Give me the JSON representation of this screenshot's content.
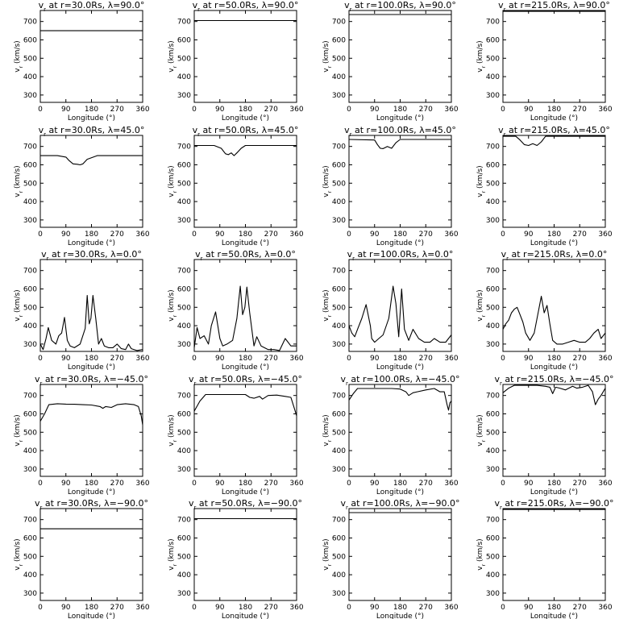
{
  "chart_data": [
    {
      "type": "line",
      "title": "v_r at r=30.0Rs, λ=90.0°",
      "title_r": "30.0",
      "title_lat": "90.0",
      "xlabel": "Longitude (°)",
      "ylabel": "v_r (km/s)",
      "xlim": [
        0,
        360
      ],
      "ylim": [
        260,
        760
      ],
      "xticks": [
        0,
        90,
        180,
        270,
        360
      ],
      "yticks": [
        300,
        400,
        500,
        600,
        700
      ],
      "series": [
        {
          "x": [
            0,
            360
          ],
          "values": [
            650,
            650
          ]
        }
      ]
    },
    {
      "type": "line",
      "title": "v_r at r=50.0Rs, λ=90.0°",
      "title_r": "50.0",
      "title_lat": "90.0",
      "xlabel": "Longitude (°)",
      "ylabel": "v_r (km/s)",
      "xlim": [
        0,
        360
      ],
      "ylim": [
        260,
        760
      ],
      "xticks": [
        0,
        90,
        180,
        270,
        360
      ],
      "yticks": [
        300,
        400,
        500,
        600,
        700
      ],
      "series": [
        {
          "x": [
            0,
            360
          ],
          "values": [
            705,
            705
          ]
        }
      ]
    },
    {
      "type": "line",
      "title": "v_r at r=100.0Rs, λ=90.0°",
      "title_r": "100.0",
      "title_lat": "90.0",
      "xlabel": "Longitude (°)",
      "ylabel": "v_r (km/s)",
      "xlim": [
        0,
        360
      ],
      "ylim": [
        260,
        760
      ],
      "xticks": [
        0,
        90,
        180,
        270,
        360
      ],
      "yticks": [
        300,
        400,
        500,
        600,
        700
      ],
      "series": [
        {
          "x": [
            0,
            360
          ],
          "values": [
            738,
            738
          ]
        }
      ]
    },
    {
      "type": "line",
      "title": "v_r at r=215.0Rs, λ=90.0°",
      "title_r": "215.0",
      "title_lat": "90.0",
      "xlabel": "Longitude (°)",
      "ylabel": "v_r (km/s)",
      "xlim": [
        0,
        360
      ],
      "ylim": [
        260,
        760
      ],
      "xticks": [
        0,
        90,
        180,
        270,
        360
      ],
      "yticks": [
        300,
        400,
        500,
        600,
        700
      ],
      "series": [
        {
          "x": [
            0,
            360
          ],
          "values": [
            755,
            755
          ]
        }
      ]
    },
    {
      "type": "line",
      "title": "v_r at r=30.0Rs, λ=45.0°",
      "title_r": "30.0",
      "title_lat": "45.0",
      "xlabel": "Longitude (°)",
      "ylabel": "v_r (km/s)",
      "xlim": [
        0,
        360
      ],
      "ylim": [
        260,
        760
      ],
      "xticks": [
        0,
        90,
        180,
        270,
        360
      ],
      "yticks": [
        300,
        400,
        500,
        600,
        700
      ],
      "series": [
        {
          "x": [
            0,
            60,
            90,
            100,
            115,
            130,
            140,
            150,
            165,
            200,
            360
          ],
          "values": [
            650,
            650,
            642,
            625,
            605,
            603,
            600,
            605,
            630,
            650,
            650
          ]
        }
      ]
    },
    {
      "type": "line",
      "title": "v_r at r=50.0Rs, λ=45.0°",
      "title_r": "50.0",
      "title_lat": "45.0",
      "xlabel": "Longitude (°)",
      "ylabel": "v_r (km/s)",
      "xlim": [
        0,
        360
      ],
      "ylim": [
        260,
        760
      ],
      "xticks": [
        0,
        90,
        180,
        270,
        360
      ],
      "yticks": [
        300,
        400,
        500,
        600,
        700
      ],
      "series": [
        {
          "x": [
            0,
            70,
            95,
            110,
            120,
            130,
            140,
            150,
            165,
            180,
            360
          ],
          "values": [
            705,
            705,
            690,
            660,
            655,
            665,
            650,
            665,
            690,
            705,
            705
          ]
        }
      ]
    },
    {
      "type": "line",
      "title": "v_r at r=100.0Rs, λ=45.0°",
      "title_r": "100.0",
      "title_lat": "45.0",
      "xlabel": "Longitude (°)",
      "ylabel": "v_r (km/s)",
      "xlim": [
        0,
        360
      ],
      "ylim": [
        260,
        760
      ],
      "xticks": [
        0,
        90,
        180,
        270,
        360
      ],
      "yticks": [
        300,
        400,
        500,
        600,
        700
      ],
      "series": [
        {
          "x": [
            0,
            90,
            100,
            110,
            120,
            135,
            150,
            165,
            180,
            360
          ],
          "values": [
            738,
            735,
            710,
            690,
            688,
            700,
            690,
            720,
            738,
            738
          ]
        }
      ]
    },
    {
      "type": "line",
      "title": "v_r at r=215.0Rs, λ=45.0°",
      "title_r": "215.0",
      "title_lat": "45.0",
      "xlabel": "Longitude (°)",
      "ylabel": "v_r (km/s)",
      "xlim": [
        0,
        360
      ],
      "ylim": [
        260,
        760
      ],
      "xticks": [
        0,
        90,
        180,
        270,
        360
      ],
      "yticks": [
        300,
        400,
        500,
        600,
        700
      ],
      "series": [
        {
          "x": [
            0,
            45,
            60,
            75,
            90,
            105,
            120,
            135,
            150,
            360
          ],
          "values": [
            755,
            755,
            735,
            710,
            705,
            715,
            705,
            725,
            755,
            755
          ]
        }
      ]
    },
    {
      "type": "line",
      "title": "v_r at r=30.0Rs, λ=0.0°",
      "title_r": "30.0",
      "title_lat": "0.0",
      "xlabel": "Longitude (°)",
      "ylabel": "v_r (km/s)",
      "xlim": [
        0,
        360
      ],
      "ylim": [
        260,
        760
      ],
      "xticks": [
        0,
        90,
        180,
        270,
        360
      ],
      "yticks": [
        300,
        400,
        500,
        600,
        700
      ],
      "series": [
        {
          "x": [
            0,
            10,
            20,
            28,
            40,
            55,
            65,
            75,
            85,
            95,
            105,
            120,
            140,
            158,
            165,
            172,
            178,
            185,
            195,
            205,
            215,
            225,
            240,
            255,
            270,
            285,
            300,
            310,
            320,
            340,
            360
          ],
          "values": [
            300,
            270,
            330,
            390,
            320,
            300,
            345,
            360,
            445,
            320,
            290,
            280,
            300,
            385,
            565,
            410,
            440,
            565,
            440,
            300,
            330,
            290,
            280,
            280,
            300,
            275,
            270,
            300,
            275,
            265,
            270
          ]
        }
      ]
    },
    {
      "type": "line",
      "title": "v_r at r=50.0Rs, λ=0.0°",
      "title_r": "50.0",
      "title_lat": "0.0",
      "xlabel": "Longitude (°)",
      "ylabel": "v_r (km/s)",
      "xlim": [
        0,
        360
      ],
      "ylim": [
        260,
        760
      ],
      "xticks": [
        0,
        90,
        180,
        270,
        360
      ],
      "yticks": [
        300,
        400,
        500,
        600,
        700
      ],
      "series": [
        {
          "x": [
            0,
            10,
            20,
            35,
            50,
            60,
            75,
            90,
            100,
            115,
            135,
            150,
            162,
            170,
            178,
            185,
            195,
            210,
            220,
            235,
            260,
            280,
            300,
            320,
            340,
            360
          ],
          "values": [
            280,
            390,
            330,
            345,
            300,
            400,
            475,
            330,
            290,
            300,
            320,
            440,
            615,
            460,
            500,
            610,
            470,
            290,
            340,
            290,
            270,
            270,
            265,
            330,
            290,
            290
          ]
        }
      ]
    },
    {
      "type": "line",
      "title": "v_r at r=100.0Rs, λ=0.0°",
      "title_r": "100.0",
      "title_lat": "0.0",
      "xlabel": "Longitude (°)",
      "ylabel": "v_r (km/s)",
      "xlim": [
        0,
        360
      ],
      "ylim": [
        260,
        760
      ],
      "xticks": [
        0,
        90,
        180,
        270,
        360
      ],
      "yticks": [
        300,
        400,
        500,
        600,
        700
      ],
      "series": [
        {
          "x": [
            0,
            10,
            20,
            30,
            45,
            60,
            75,
            80,
            90,
            105,
            120,
            140,
            155,
            165,
            175,
            185,
            195,
            210,
            225,
            245,
            265,
            285,
            300,
            320,
            340,
            360
          ],
          "values": [
            400,
            360,
            340,
            380,
            440,
            515,
            400,
            330,
            310,
            330,
            350,
            440,
            615,
            520,
            340,
            600,
            380,
            320,
            380,
            330,
            310,
            310,
            330,
            310,
            310,
            350
          ]
        }
      ]
    },
    {
      "type": "line",
      "title": "v_r at r=215.0Rs, λ=0.0°",
      "title_r": "215.0",
      "title_lat": "0.0",
      "xlabel": "Longitude (°)",
      "ylabel": "v_r (km/s)",
      "xlim": [
        0,
        360
      ],
      "ylim": [
        260,
        760
      ],
      "xticks": [
        0,
        90,
        180,
        270,
        360
      ],
      "yticks": [
        300,
        400,
        500,
        600,
        700
      ],
      "series": [
        {
          "x": [
            0,
            10,
            20,
            30,
            40,
            50,
            60,
            70,
            80,
            95,
            110,
            125,
            135,
            145,
            155,
            165,
            175,
            190,
            210,
            230,
            250,
            270,
            290,
            305,
            320,
            335,
            345,
            360
          ],
          "values": [
            380,
            410,
            430,
            470,
            490,
            500,
            460,
            420,
            360,
            320,
            360,
            480,
            560,
            470,
            510,
            410,
            320,
            300,
            300,
            310,
            320,
            310,
            310,
            330,
            360,
            380,
            330,
            360
          ]
        }
      ]
    },
    {
      "type": "line",
      "title": "v_r at r=30.0Rs, λ=-45.0°",
      "title_r": "30.0",
      "title_lat": "-45.0",
      "xlabel": "Longitude (°)",
      "ylabel": "v_r (km/s)",
      "xlim": [
        0,
        360
      ],
      "ylim": [
        260,
        760
      ],
      "xticks": [
        0,
        90,
        180,
        270,
        360
      ],
      "yticks": [
        300,
        400,
        500,
        600,
        700
      ],
      "series": [
        {
          "x": [
            0,
            15,
            30,
            60,
            90,
            120,
            150,
            180,
            210,
            220,
            230,
            250,
            270,
            300,
            330,
            345,
            355,
            360
          ],
          "values": [
            560,
            600,
            650,
            655,
            653,
            652,
            650,
            648,
            640,
            630,
            640,
            635,
            650,
            655,
            650,
            640,
            590,
            540
          ]
        }
      ]
    },
    {
      "type": "line",
      "title": "v_r at r=50.0Rs, λ=-45.0°",
      "title_r": "50.0",
      "title_lat": "-45.0",
      "xlabel": "Longitude (°)",
      "ylabel": "v_r (km/s)",
      "xlim": [
        0,
        360
      ],
      "ylim": [
        260,
        760
      ],
      "xticks": [
        0,
        90,
        180,
        270,
        360
      ],
      "yticks": [
        300,
        400,
        500,
        600,
        700
      ],
      "series": [
        {
          "x": [
            0,
            20,
            40,
            60,
            90,
            120,
            150,
            180,
            195,
            210,
            230,
            240,
            260,
            290,
            320,
            340,
            350,
            360
          ],
          "values": [
            615,
            670,
            705,
            705,
            705,
            705,
            705,
            705,
            690,
            685,
            695,
            680,
            700,
            702,
            695,
            690,
            640,
            590
          ]
        }
      ]
    },
    {
      "type": "line",
      "title": "v_r at r=100.0Rs, λ=-45.0°",
      "title_r": "100.0",
      "title_lat": "-45.0",
      "xlabel": "Longitude (°)",
      "ylabel": "v_r (km/s)",
      "xlim": [
        0,
        360
      ],
      "ylim": [
        260,
        760
      ],
      "xticks": [
        0,
        90,
        180,
        270,
        360
      ],
      "yticks": [
        300,
        400,
        500,
        600,
        700
      ],
      "series": [
        {
          "x": [
            0,
            15,
            30,
            60,
            90,
            120,
            150,
            180,
            200,
            210,
            225,
            240,
            270,
            300,
            320,
            335,
            345,
            350,
            355,
            360
          ],
          "values": [
            675,
            710,
            738,
            738,
            738,
            738,
            738,
            735,
            720,
            700,
            715,
            720,
            730,
            738,
            720,
            720,
            650,
            620,
            660,
            670
          ]
        }
      ]
    },
    {
      "type": "line",
      "title": "v_r at r=215.0Rs, λ=-45.0°",
      "title_r": "215.0",
      "title_lat": "-45.0",
      "xlabel": "Longitude (°)",
      "ylabel": "v_r (km/s)",
      "xlim": [
        0,
        360
      ],
      "ylim": [
        260,
        760
      ],
      "xticks": [
        0,
        90,
        180,
        270,
        360
      ],
      "yticks": [
        300,
        400,
        500,
        600,
        700
      ],
      "series": [
        {
          "x": [
            0,
            20,
            40,
            60,
            90,
            120,
            150,
            165,
            175,
            185,
            200,
            220,
            245,
            260,
            280,
            300,
            315,
            325,
            335,
            345,
            360
          ],
          "values": [
            715,
            740,
            755,
            755,
            755,
            755,
            750,
            745,
            710,
            745,
            740,
            730,
            750,
            740,
            745,
            755,
            720,
            650,
            680,
            700,
            740
          ]
        }
      ]
    },
    {
      "type": "line",
      "title": "v_r at r=30.0Rs, λ=-90.0°",
      "title_r": "30.0",
      "title_lat": "-90.0",
      "xlabel": "Longitude (°)",
      "ylabel": "v_r (km/s)",
      "xlim": [
        0,
        360
      ],
      "ylim": [
        260,
        760
      ],
      "xticks": [
        0,
        90,
        180,
        270,
        360
      ],
      "yticks": [
        300,
        400,
        500,
        600,
        700
      ],
      "series": [
        {
          "x": [
            0,
            360
          ],
          "values": [
            650,
            650
          ]
        }
      ]
    },
    {
      "type": "line",
      "title": "v_r at r=50.0Rs, λ=-90.0°",
      "title_r": "50.0",
      "title_lat": "-90.0",
      "xlabel": "Longitude (°)",
      "ylabel": "v_r (km/s)",
      "xlim": [
        0,
        360
      ],
      "ylim": [
        260,
        760
      ],
      "xticks": [
        0,
        90,
        180,
        270,
        360
      ],
      "yticks": [
        300,
        400,
        500,
        600,
        700
      ],
      "series": [
        {
          "x": [
            0,
            360
          ],
          "values": [
            705,
            705
          ]
        }
      ]
    },
    {
      "type": "line",
      "title": "v_r at r=100.0Rs, λ=-90.0°",
      "title_r": "100.0",
      "title_lat": "-90.0",
      "xlabel": "Longitude (°)",
      "ylabel": "v_r (km/s)",
      "xlim": [
        0,
        360
      ],
      "ylim": [
        260,
        760
      ],
      "xticks": [
        0,
        90,
        180,
        270,
        360
      ],
      "yticks": [
        300,
        400,
        500,
        600,
        700
      ],
      "series": [
        {
          "x": [
            0,
            360
          ],
          "values": [
            738,
            738
          ]
        }
      ]
    },
    {
      "type": "line",
      "title": "v_r at r=215.0Rs, λ=-90.0°",
      "title_r": "215.0",
      "title_lat": "-90.0",
      "xlabel": "Longitude (°)",
      "ylabel": "v_r (km/s)",
      "xlim": [
        0,
        360
      ],
      "ylim": [
        260,
        760
      ],
      "xticks": [
        0,
        90,
        180,
        270,
        360
      ],
      "yticks": [
        300,
        400,
        500,
        600,
        700
      ],
      "series": [
        {
          "x": [
            0,
            360
          ],
          "values": [
            755,
            755
          ]
        }
      ]
    }
  ]
}
